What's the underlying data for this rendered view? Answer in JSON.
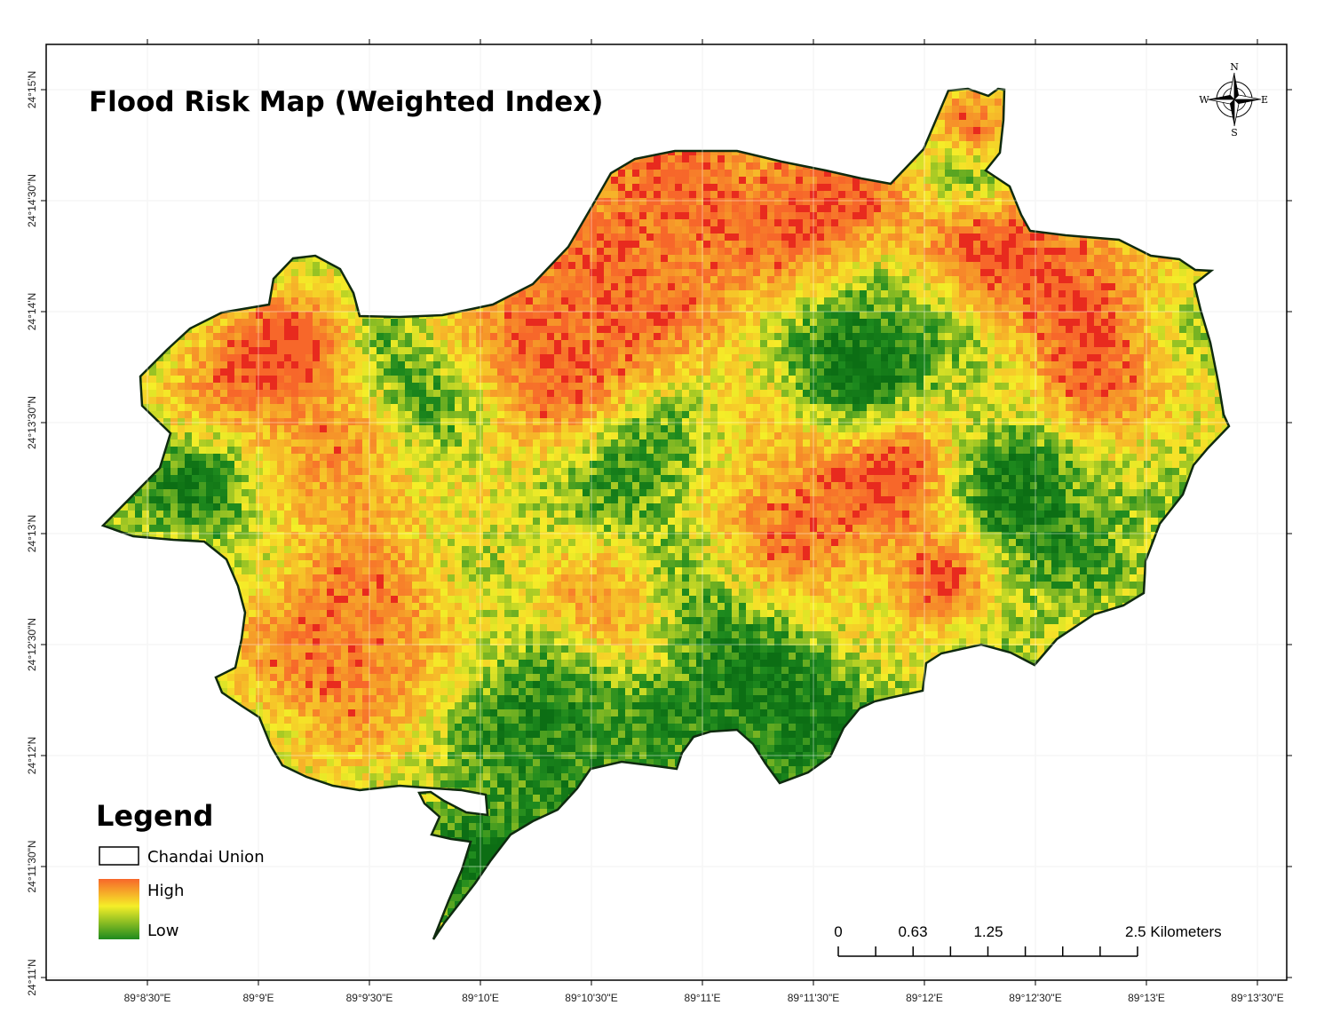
{
  "title": "Flood Risk Map (Weighted Index)",
  "grid": {
    "longitude_labels": [
      "89°8'30\"E",
      "89°9'E",
      "89°9'30\"E",
      "89°10'E",
      "89°10'30\"E",
      "89°11'E",
      "89°11'30\"E",
      "89°12'E",
      "89°12'30\"E",
      "89°13'E",
      "89°13'30\"E"
    ],
    "latitude_labels": [
      "24°15'N",
      "24°14'30\"N",
      "24°14'N",
      "24°13'30\"N",
      "24°13'N",
      "24°12'30\"N",
      "24°12'N",
      "24°11'30\"N",
      "24°11'N"
    ]
  },
  "compass": {
    "north": "N",
    "south": "S",
    "east": "E",
    "west": "W"
  },
  "legend": {
    "title": "Legend",
    "boundary_label": "Chandai Union",
    "high_label": "High",
    "low_label": "Low"
  },
  "colors": {
    "high": "#f7672a",
    "mid": "#f5ee28",
    "low": "#1e8a1e",
    "boundary": "#0f2a0f",
    "graticule": "#d9d9d9"
  },
  "scale_bar": {
    "labels": [
      "0",
      "0.63",
      "1.25",
      "2.5 Kilometers"
    ]
  }
}
